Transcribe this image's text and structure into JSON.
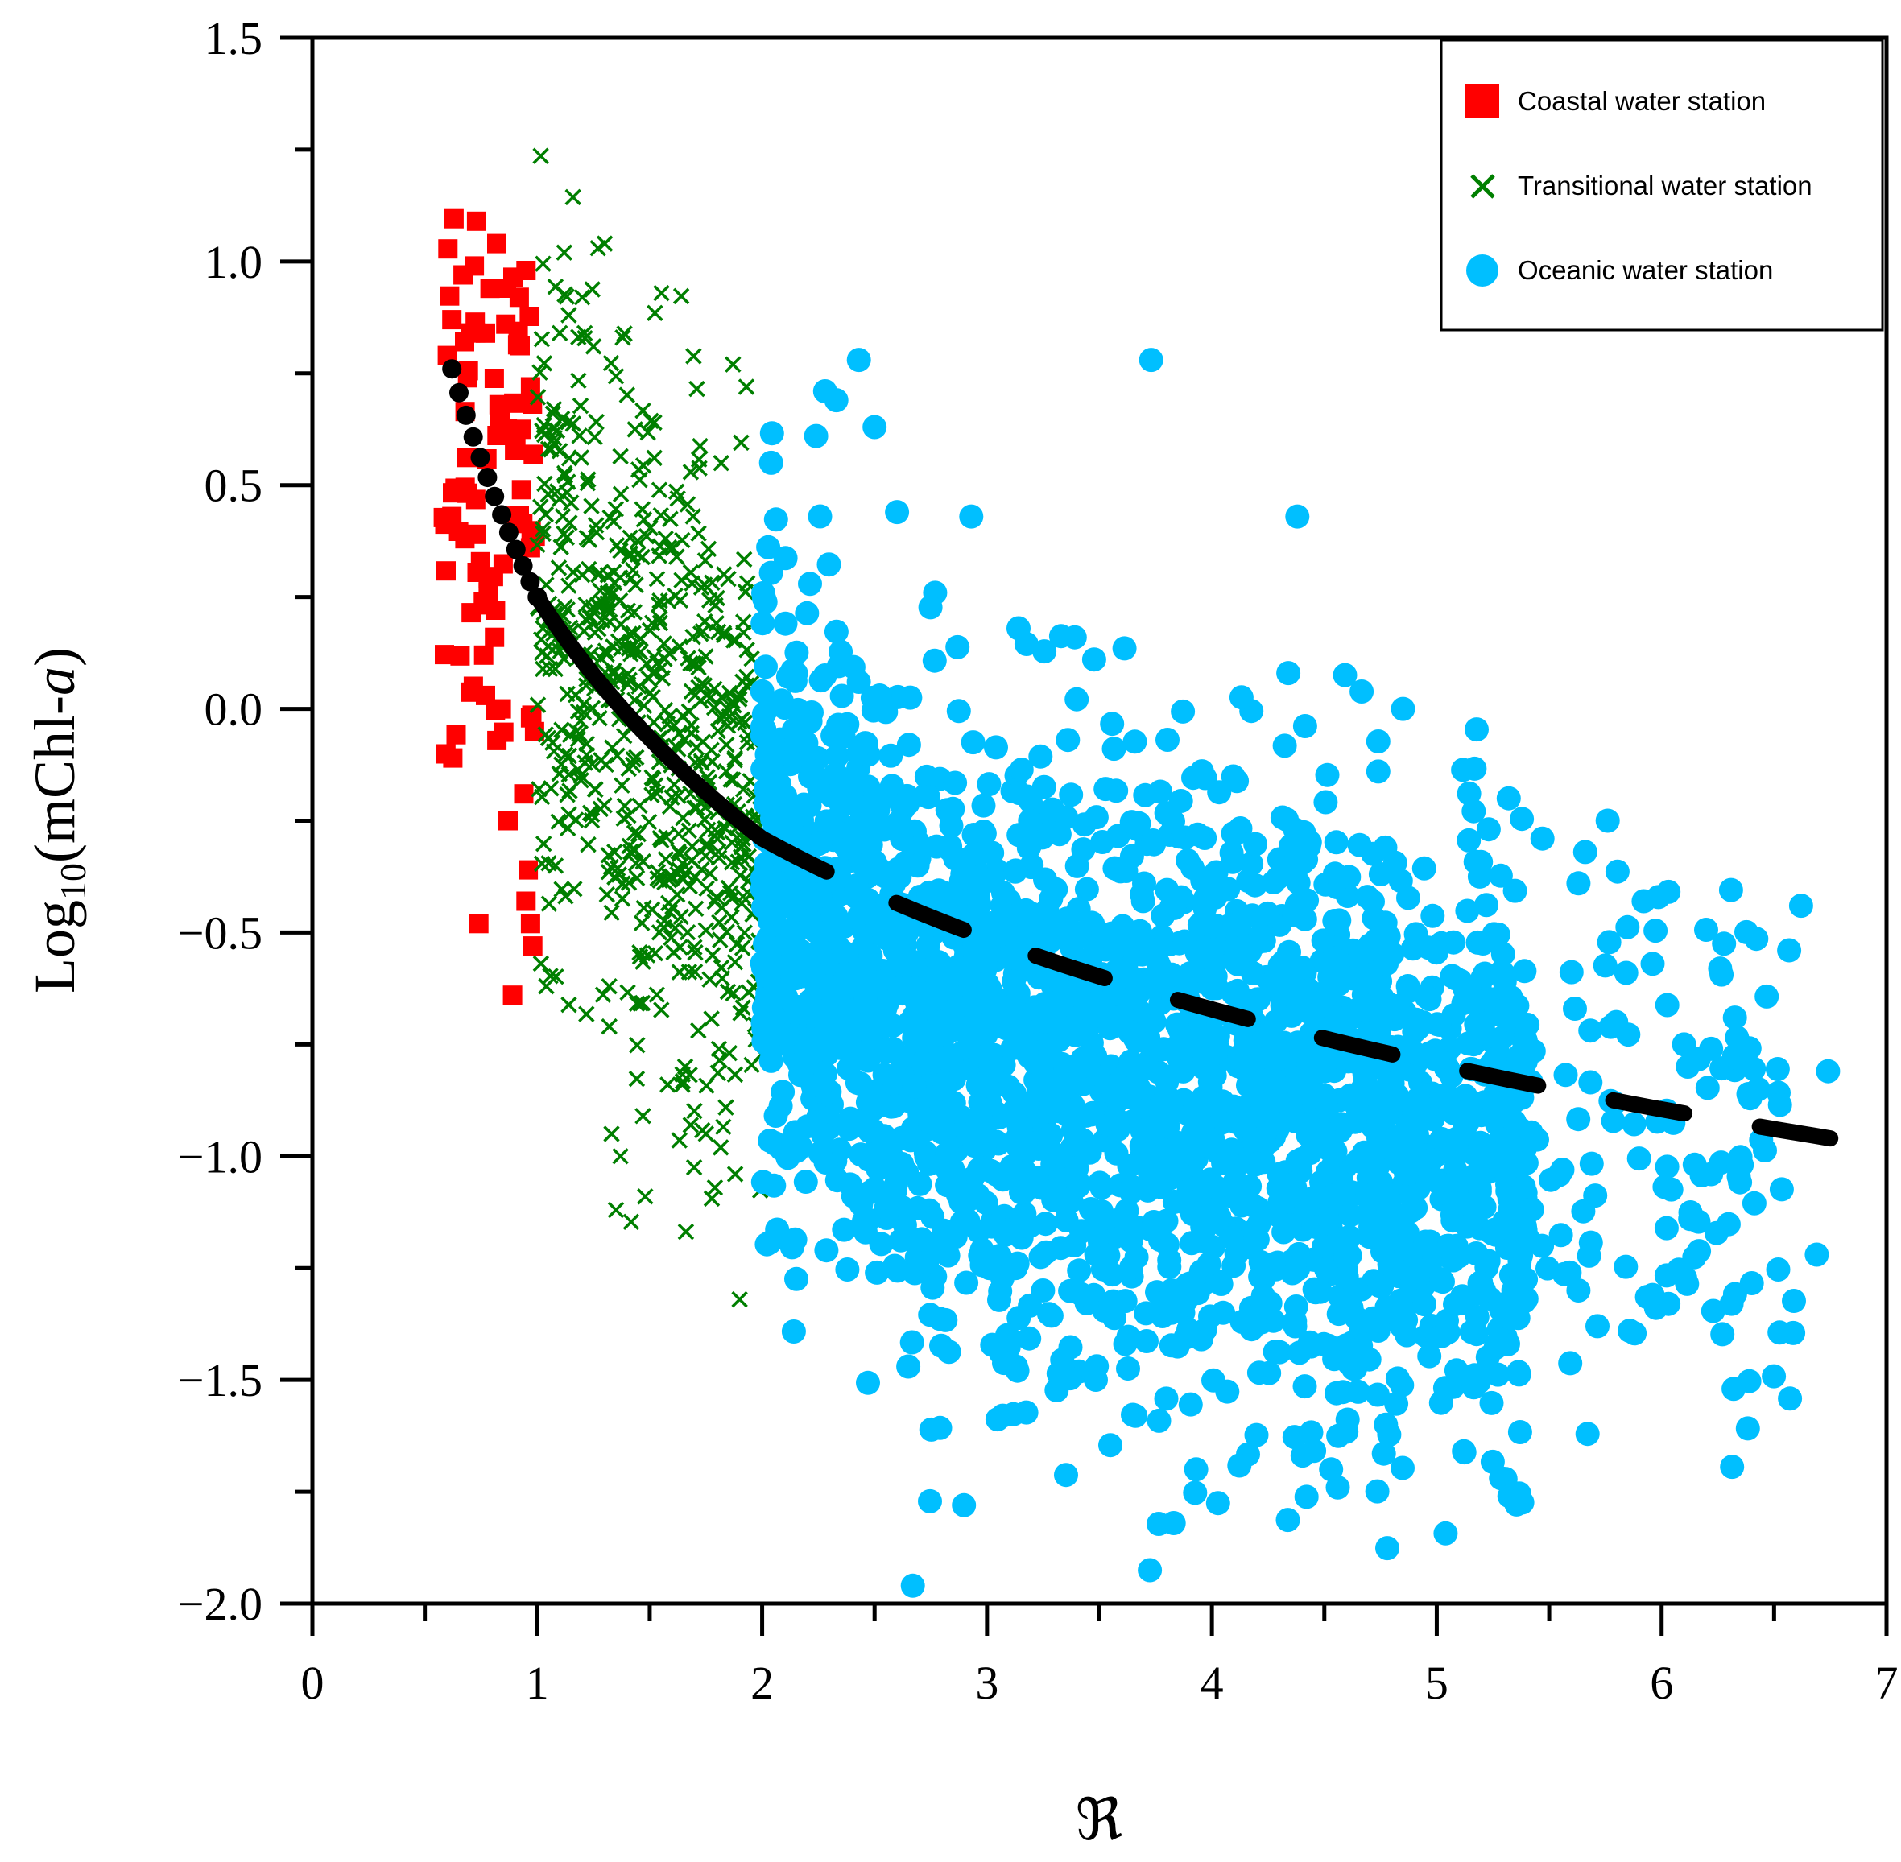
{
  "chart_data": {
    "type": "scatter",
    "title": "",
    "xlabel": "ℜ",
    "ylabel_main": "Log",
    "ylabel_sub": "10",
    "ylabel_rest": "(mChl-",
    "ylabel_italic": "a",
    "ylabel_close": ")",
    "xlim": [
      0,
      7
    ],
    "ylim": [
      -2.0,
      1.5
    ],
    "x_ticks": [
      0,
      1,
      2,
      3,
      4,
      5,
      6,
      7
    ],
    "x_tick_labels": [
      "0",
      "1",
      "2",
      "3",
      "4",
      "5",
      "6",
      "7"
    ],
    "y_ticks": [
      1.5,
      1.0,
      0.5,
      0.0,
      -0.5,
      -1.0,
      -1.5,
      -2.0
    ],
    "y_tick_labels": [
      "1.5",
      "1.0",
      "0.5",
      "0.0",
      "−0.5",
      "−1.0",
      "−1.5",
      "−2.0"
    ],
    "grid": false,
    "legend_position": "top-right",
    "series": [
      {
        "name": "Coastal water station",
        "marker": "square",
        "color": "#ff0000",
        "x_range": [
          0.58,
          1.0
        ],
        "count": 95,
        "points": [
          [
            0.73,
            1.09
          ],
          [
            0.82,
            1.04
          ],
          [
            0.95,
            0.98
          ],
          [
            0.67,
            0.97
          ],
          [
            0.72,
            0.99
          ],
          [
            0.79,
            0.94
          ],
          [
            0.92,
            0.92
          ],
          [
            0.62,
            0.87
          ],
          [
            0.86,
            0.86
          ],
          [
            0.77,
            0.84
          ],
          [
            0.6,
            0.79
          ],
          [
            0.69,
            0.74
          ],
          [
            0.97,
            0.72
          ],
          [
            0.83,
            0.68
          ],
          [
            0.62,
            0.43
          ],
          [
            0.73,
            0.39
          ],
          [
            0.93,
            0.49
          ],
          [
            0.97,
            0.36
          ],
          [
            0.76,
            0.24
          ],
          [
            0.81,
            0.16
          ],
          [
            0.77,
            0.03
          ],
          [
            0.84,
            0.0
          ],
          [
            0.97,
            -0.02
          ],
          [
            0.94,
            -0.19
          ],
          [
            0.87,
            -0.25
          ],
          [
            0.96,
            -0.36
          ],
          [
            0.95,
            -0.43
          ],
          [
            0.74,
            -0.48
          ],
          [
            0.97,
            -0.48
          ],
          [
            0.98,
            -0.53
          ],
          [
            0.89,
            -0.64
          ]
        ],
        "cluster": {
          "x": [
            0.58,
            1.0
          ],
          "y_mean": 0.42,
          "y_sd": 0.28,
          "n": 64
        }
      },
      {
        "name": "Transitional water station",
        "marker": "x",
        "color": "#007f00",
        "x_range": [
          1.0,
          2.0
        ],
        "count": 700,
        "points": [
          [
            1.12,
            1.02
          ],
          [
            1.27,
            1.03
          ],
          [
            1.3,
            1.04
          ],
          [
            1.2,
            0.92
          ],
          [
            1.14,
            0.88
          ],
          [
            1.25,
            0.81
          ],
          [
            1.38,
            0.83
          ],
          [
            1.87,
            0.77
          ],
          [
            1.93,
            0.72
          ],
          [
            1.1,
            0.84
          ],
          [
            1.52,
            0.64
          ],
          [
            1.07,
            0.66
          ],
          [
            1.62,
            0.34
          ],
          [
            1.33,
            -0.95
          ],
          [
            1.37,
            -1.0
          ],
          [
            1.47,
            -0.91
          ],
          [
            1.35,
            -1.12
          ],
          [
            1.48,
            -1.09
          ],
          [
            1.75,
            -0.95
          ],
          [
            1.88,
            -1.04
          ],
          [
            1.79,
            -1.07
          ],
          [
            1.9,
            -1.32
          ],
          [
            1.04,
            -0.62
          ],
          [
            1.32,
            -0.71
          ],
          [
            1.58,
            -0.84
          ]
        ],
        "cluster": {
          "x": [
            1.0,
            2.0
          ],
          "y_mean_start": 0.25,
          "y_mean_end": -0.3,
          "y_sd": 0.36,
          "n": 640
        }
      },
      {
        "name": "Oceanic water station",
        "marker": "circle",
        "color": "#00bfff",
        "x_range": [
          2.0,
          6.75
        ],
        "count": 2600,
        "points": [
          [
            2.43,
            0.78
          ],
          [
            3.73,
            0.78
          ],
          [
            2.28,
            0.71
          ],
          [
            2.33,
            0.69
          ],
          [
            2.5,
            0.63
          ],
          [
            2.24,
            0.61
          ],
          [
            2.04,
            0.55
          ],
          [
            4.38,
            0.43
          ],
          [
            2.93,
            0.43
          ],
          [
            2.6,
            0.44
          ],
          [
            3.39,
            0.16
          ],
          [
            3.14,
            0.18
          ],
          [
            4.85,
            -0.0
          ],
          [
            4.34,
            0.08
          ],
          [
            2.65,
            -1.47
          ],
          [
            3.07,
            -1.58
          ],
          [
            3.09,
            -1.4
          ],
          [
            3.93,
            -1.7
          ],
          [
            4.53,
            -1.7
          ],
          [
            3.83,
            -1.82
          ],
          [
            2.67,
            -1.96
          ],
          [
            6.32,
            -1.52
          ],
          [
            6.69,
            -1.22
          ],
          [
            6.62,
            -0.44
          ],
          [
            6.74,
            -0.81
          ],
          [
            6.43,
            -0.85
          ],
          [
            6.35,
            -0.75
          ],
          [
            6.22,
            -0.76
          ],
          [
            6.1,
            -0.75
          ],
          [
            5.92,
            -0.43
          ],
          [
            5.96,
            -0.57
          ],
          [
            5.76,
            -0.25
          ],
          [
            5.66,
            -0.32
          ],
          [
            5.63,
            -0.39
          ],
          [
            5.47,
            -0.29
          ],
          [
            5.32,
            -0.2
          ],
          [
            6.22,
            -1.04
          ],
          [
            6.03,
            -1.33
          ],
          [
            5.96,
            -1.31
          ],
          [
            5.63,
            -1.3
          ],
          [
            5.21,
            -1.3
          ],
          [
            4.74,
            -1.39
          ],
          [
            4.05,
            -1.35
          ],
          [
            4.37,
            -1.38
          ],
          [
            3.82,
            -1.35
          ],
          [
            3.82,
            -1.3
          ],
          [
            3.01,
            -1.25
          ],
          [
            2.86,
            -1.18
          ],
          [
            2.46,
            -1.17
          ],
          [
            4.74,
            -0.14
          ]
        ],
        "cluster": {
          "x": [
            2.0,
            5.4
          ],
          "y_mean_start": -0.35,
          "y_mean_end": -1.0,
          "y_sd": 0.34,
          "n": 2400
        }
      }
    ],
    "fit_lines": [
      {
        "name": "fit-dotted",
        "style": "dotted",
        "color": "#000000",
        "x": [
          0.62,
          1.0
        ],
        "y": [
          0.76,
          0.25
        ]
      },
      {
        "name": "fit-solid",
        "style": "solid",
        "color": "#000000",
        "x": [
          1.0,
          2.0
        ],
        "y": [
          0.25,
          -0.29
        ]
      },
      {
        "name": "fit-dashed",
        "style": "dashed",
        "color": "#000000",
        "x": [
          2.0,
          6.75
        ],
        "y": [
          -0.29,
          -0.96
        ]
      }
    ]
  }
}
